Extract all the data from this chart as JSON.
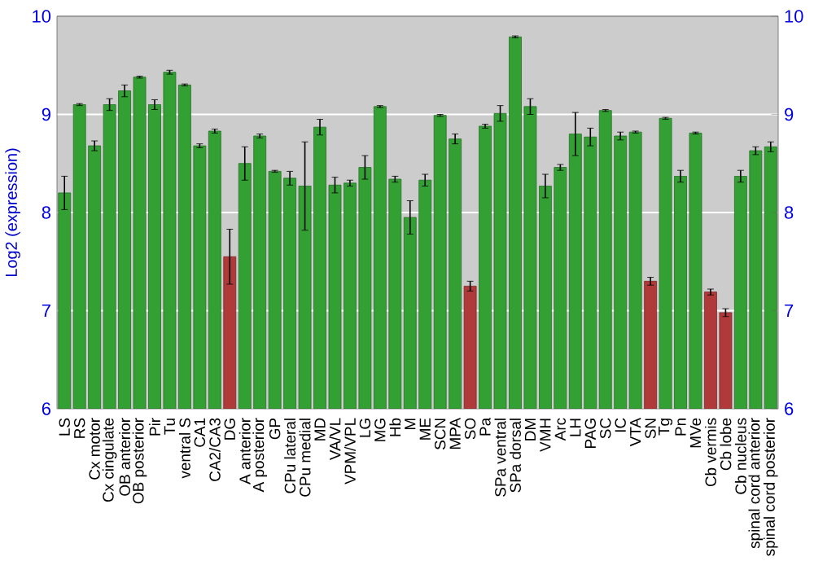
{
  "chart_data": {
    "type": "bar",
    "ylabel": "Log2 (expression)",
    "categories": [
      "LS",
      "RS",
      "Cx motor",
      "Cx cingulate",
      "OB anterior",
      "OB posterior",
      "Pir",
      "Tu",
      "ventral S",
      "CA1",
      "CA2/CA3",
      "DG",
      "A anterior",
      "A posterior",
      "GP",
      "CPu lateral",
      "CPu medial",
      "MD",
      "VA/VL",
      "VPM/VPL",
      "LG",
      "MG",
      "Hb",
      "M",
      "ME",
      "SCN",
      "MPA",
      "SO",
      "Pa",
      "SPa ventral",
      "SPa dorsal",
      "DM",
      "VMH",
      "Arc",
      "LH",
      "PAG",
      "SC",
      "IC",
      "VTA",
      "SN",
      "Tg",
      "Pn",
      "MVe",
      "Cb vermis",
      "Cb lobe",
      "Cb nucleus",
      "spinal cord anterior",
      "spinal cord posterior"
    ],
    "values": [
      8.2,
      9.1,
      8.68,
      9.1,
      9.24,
      9.38,
      9.1,
      9.43,
      9.3,
      8.68,
      8.83,
      7.55,
      8.5,
      8.78,
      8.42,
      8.35,
      8.27,
      8.87,
      8.28,
      8.3,
      8.46,
      9.08,
      8.34,
      7.95,
      8.33,
      8.99,
      8.75,
      7.25,
      8.88,
      9.01,
      9.79,
      9.08,
      8.27,
      8.46,
      8.8,
      8.77,
      9.04,
      8.78,
      8.82,
      7.3,
      8.96,
      8.37,
      8.81,
      7.19,
      6.98,
      8.37,
      8.63,
      8.67
    ],
    "errors": [
      0.17,
      0.01,
      0.05,
      0.06,
      0.06,
      0.01,
      0.05,
      0.02,
      0.01,
      0.02,
      0.02,
      0.28,
      0.17,
      0.02,
      0.01,
      0.07,
      0.45,
      0.08,
      0.08,
      0.03,
      0.12,
      0.01,
      0.03,
      0.17,
      0.06,
      0.01,
      0.05,
      0.05,
      0.02,
      0.08,
      0.01,
      0.08,
      0.12,
      0.03,
      0.22,
      0.09,
      0.01,
      0.04,
      0.01,
      0.04,
      0.01,
      0.06,
      0.01,
      0.03,
      0.04,
      0.06,
      0.04,
      0.05
    ],
    "colors": [
      "#33a033",
      "#33a033",
      "#33a033",
      "#33a033",
      "#33a033",
      "#33a033",
      "#33a033",
      "#33a033",
      "#33a033",
      "#33a033",
      "#33a033",
      "#b03a3a",
      "#33a033",
      "#33a033",
      "#33a033",
      "#33a033",
      "#33a033",
      "#33a033",
      "#33a033",
      "#33a033",
      "#33a033",
      "#33a033",
      "#33a033",
      "#33a033",
      "#33a033",
      "#33a033",
      "#33a033",
      "#b03a3a",
      "#33a033",
      "#33a033",
      "#33a033",
      "#33a033",
      "#33a033",
      "#33a033",
      "#33a033",
      "#33a033",
      "#33a033",
      "#33a033",
      "#33a033",
      "#b03a3a",
      "#33a033",
      "#33a033",
      "#33a033",
      "#b03a3a",
      "#b03a3a",
      "#33a033",
      "#33a033",
      "#33a033"
    ],
    "ylim": [
      6,
      10
    ],
    "yticks": [
      6,
      7,
      8,
      9,
      10
    ],
    "y2lim": [
      6,
      10
    ],
    "y2ticks": [
      6,
      7,
      8,
      9,
      10
    ],
    "grid": "y"
  }
}
